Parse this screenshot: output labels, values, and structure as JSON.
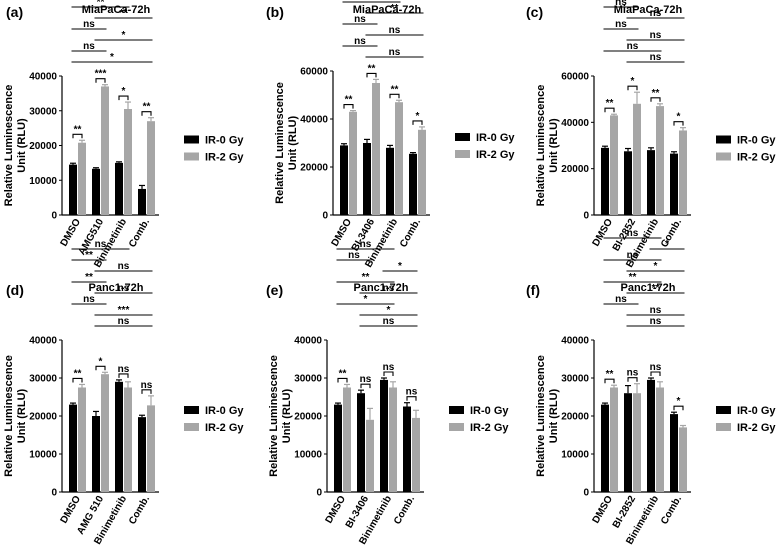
{
  "chart_data": [
    {
      "type": "bar",
      "panel_label": "(a)",
      "title": "MiaPaCa-72h",
      "xlabel": "",
      "ylabel": "Relative Luminescence Unit (RLU)",
      "ylim": [
        0,
        40000
      ],
      "yticks": [
        "0",
        "10000",
        "20000",
        "30000",
        "40000"
      ],
      "categories": [
        "DMSO",
        "AMG510",
        "Binimetinib",
        "Comb."
      ],
      "series": [
        {
          "name": "IR-0 Gy",
          "color": "#000000",
          "values": [
            14500,
            13300,
            15000,
            7500
          ],
          "errors": [
            400,
            300,
            300,
            1000
          ]
        },
        {
          "name": "IR-2 Gy",
          "color": "#a6a6a6",
          "values": [
            20800,
            37000,
            30500,
            27000
          ],
          "errors": [
            700,
            500,
            2000,
            1000
          ]
        }
      ],
      "pair_labels": [
        "**",
        "***",
        "*",
        "**"
      ],
      "comparisons": [
        {
          "from": 0,
          "to": 2,
          "label": "*"
        },
        {
          "from": 2,
          "to": 3,
          "label": "ns"
        },
        {
          "from": 0,
          "to": 2,
          "label": "**"
        },
        {
          "from": 1,
          "to": 3,
          "label": "**"
        },
        {
          "from": 0,
          "to": 1,
          "label": "ns"
        },
        {
          "from": 1,
          "to": 3,
          "label": "*"
        },
        {
          "from": 0,
          "to": 1,
          "label": "ns"
        },
        {
          "from": 0,
          "to": 3,
          "label": "*"
        }
      ]
    },
    {
      "type": "bar",
      "panel_label": "(b)",
      "title": "MiaPaCa-72h",
      "xlabel": "",
      "ylabel": "Relative Luminescence Unit (RLU)",
      "ylim": [
        0,
        60000
      ],
      "yticks": [
        "0",
        "20000",
        "40000",
        "60000"
      ],
      "categories": [
        "DMSO",
        "BI-3406",
        "Binimetinib",
        "Comb."
      ],
      "series": [
        {
          "name": "IR-0 Gy",
          "color": "#000000",
          "values": [
            29000,
            30000,
            28000,
            25500
          ],
          "errors": [
            700,
            1500,
            1000,
            500
          ]
        },
        {
          "name": "IR-2 Gy",
          "color": "#a6a6a6",
          "values": [
            43000,
            55000,
            47000,
            35500
          ],
          "errors": [
            500,
            1500,
            800,
            1200
          ]
        }
      ],
      "pair_labels": [
        "**",
        "**",
        "**",
        "*"
      ],
      "comparisons": [
        {
          "from": 0,
          "to": 3,
          "label": "*"
        },
        {
          "from": 0,
          "to": 2,
          "label": "**"
        },
        {
          "from": 2,
          "to": 3,
          "label": "*"
        },
        {
          "from": 0,
          "to": 2,
          "label": "**"
        },
        {
          "from": 1,
          "to": 3,
          "label": "**"
        },
        {
          "from": 0,
          "to": 1,
          "label": "ns"
        },
        {
          "from": 1,
          "to": 3,
          "label": "ns"
        },
        {
          "from": 0,
          "to": 1,
          "label": "ns"
        },
        {
          "from": 1,
          "to": 3,
          "label": "ns"
        }
      ]
    },
    {
      "type": "bar",
      "panel_label": "(c)",
      "title": "MiaPaCa-72h",
      "xlabel": "",
      "ylabel": "Relative Luminescence Unit (RLU)",
      "ylim": [
        0,
        60000
      ],
      "yticks": [
        "0",
        "20000",
        "40000",
        "60000"
      ],
      "categories": [
        "DMSO",
        "BI-2852",
        "Binimetinib",
        "Comb."
      ],
      "series": [
        {
          "name": "IR-0 Gy",
          "color": "#000000",
          "values": [
            29000,
            27500,
            28000,
            26500
          ],
          "errors": [
            700,
            1200,
            1000,
            800
          ]
        },
        {
          "name": "IR-2 Gy",
          "color": "#a6a6a6",
          "values": [
            43000,
            48000,
            47000,
            36500
          ],
          "errors": [
            500,
            5000,
            1000,
            1200
          ]
        }
      ],
      "pair_labels": [
        "**",
        "*",
        "**",
        "*"
      ],
      "comparisons": [
        {
          "from": 0,
          "to": 2,
          "label": "*"
        },
        {
          "from": 2,
          "to": 3,
          "label": "*"
        },
        {
          "from": 0,
          "to": 1,
          "label": "ns"
        },
        {
          "from": 1,
          "to": 3,
          "label": "ns"
        },
        {
          "from": 0,
          "to": 1,
          "label": "ns"
        },
        {
          "from": 1,
          "to": 3,
          "label": "ns"
        },
        {
          "from": 0,
          "to": 2,
          "label": "ns"
        },
        {
          "from": 1,
          "to": 3,
          "label": "ns"
        }
      ]
    },
    {
      "type": "bar",
      "panel_label": "(d)",
      "title": "Panc1-72h",
      "xlabel": "",
      "ylabel": "Relative Luminescence Unit (RLU)",
      "ylim": [
        0,
        40000
      ],
      "yticks": [
        "0",
        "10000",
        "20000",
        "30000",
        "40000"
      ],
      "categories": [
        "DMSO",
        "AMG 510",
        "Binimetinib",
        "Comb."
      ],
      "series": [
        {
          "name": "IR-0 Gy",
          "color": "#000000",
          "values": [
            23000,
            20000,
            29000,
            19700
          ],
          "errors": [
            400,
            1200,
            500,
            500
          ]
        },
        {
          "name": "IR-2 Gy",
          "color": "#a6a6a6",
          "values": [
            27500,
            31000,
            27500,
            22800
          ],
          "errors": [
            800,
            500,
            1500,
            2500
          ]
        }
      ],
      "pair_labels": [
        "**",
        "*",
        "ns",
        "ns"
      ],
      "comparisons": [
        {
          "from": 0,
          "to": 2,
          "label": "ns"
        },
        {
          "from": 0,
          "to": 1,
          "label": "**"
        },
        {
          "from": 1,
          "to": 3,
          "label": "ns"
        },
        {
          "from": 0,
          "to": 1,
          "label": "**"
        },
        {
          "from": 1,
          "to": 3,
          "label": "ns"
        },
        {
          "from": 0,
          "to": 1,
          "label": "ns"
        },
        {
          "from": 1,
          "to": 3,
          "label": "***"
        },
        {
          "from": 1,
          "to": 3,
          "label": "ns"
        }
      ]
    },
    {
      "type": "bar",
      "panel_label": "(e)",
      "title": "Panc1-72h",
      "xlabel": "",
      "ylabel": "Relative Luminescence Unit (RLU)",
      "ylim": [
        0,
        40000
      ],
      "yticks": [
        "0",
        "10000",
        "20000",
        "30000",
        "40000"
      ],
      "categories": [
        "DMSO",
        "BI-3406",
        "Binimetinib",
        "Comb."
      ],
      "series": [
        {
          "name": "IR-0 Gy",
          "color": "#000000",
          "values": [
            23000,
            26000,
            29500,
            22500
          ],
          "errors": [
            400,
            800,
            500,
            1000
          ]
        },
        {
          "name": "IR-2 Gy",
          "color": "#a6a6a6",
          "values": [
            27500,
            19000,
            27500,
            19500
          ],
          "errors": [
            800,
            3000,
            1500,
            2000
          ]
        }
      ],
      "pair_labels": [
        "**",
        "ns",
        "ns",
        "ns"
      ],
      "comparisons": [
        {
          "from": 0,
          "to": 2,
          "label": "ns"
        },
        {
          "from": 0,
          "to": 1,
          "label": "ns"
        },
        {
          "from": 2,
          "to": 3,
          "label": "*"
        },
        {
          "from": 0,
          "to": 2,
          "label": "**"
        },
        {
          "from": 1,
          "to": 3,
          "label": "ns"
        },
        {
          "from": 0,
          "to": 2,
          "label": "*"
        },
        {
          "from": 1,
          "to": 3,
          "label": "*"
        },
        {
          "from": 1,
          "to": 3,
          "label": "ns"
        }
      ]
    },
    {
      "type": "bar",
      "panel_label": "(f)",
      "title": "Panc1-72h",
      "xlabel": "",
      "ylabel": "Relative Luminescence Unit (RLU)",
      "ylim": [
        0,
        40000
      ],
      "yticks": [
        "0",
        "10000",
        "20000",
        "30000",
        "40000"
      ],
      "categories": [
        "DMSO",
        "BI-2852",
        "Binimetinib",
        "Comb."
      ],
      "series": [
        {
          "name": "IR-0 Gy",
          "color": "#000000",
          "values": [
            23000,
            26000,
            29500,
            20500
          ],
          "errors": [
            400,
            2000,
            500,
            500
          ]
        },
        {
          "name": "IR-2 Gy",
          "color": "#a6a6a6",
          "values": [
            27500,
            26000,
            27500,
            17000
          ],
          "errors": [
            600,
            2500,
            1500,
            500
          ]
        }
      ],
      "pair_labels": [
        "**",
        "ns",
        "ns",
        "*"
      ],
      "comparisons": [
        {
          "from": 0,
          "to": 2,
          "label": "ns"
        },
        {
          "from": 2,
          "to": 3,
          "label": "*"
        },
        {
          "from": 0,
          "to": 2,
          "label": "ns"
        },
        {
          "from": 1,
          "to": 3,
          "label": "*"
        },
        {
          "from": 0,
          "to": 2,
          "label": "**"
        },
        {
          "from": 1,
          "to": 3,
          "label": "**"
        },
        {
          "from": 0,
          "to": 1,
          "label": "ns"
        },
        {
          "from": 1,
          "to": 3,
          "label": "ns"
        },
        {
          "from": 1,
          "to": 3,
          "label": "ns"
        }
      ]
    }
  ]
}
